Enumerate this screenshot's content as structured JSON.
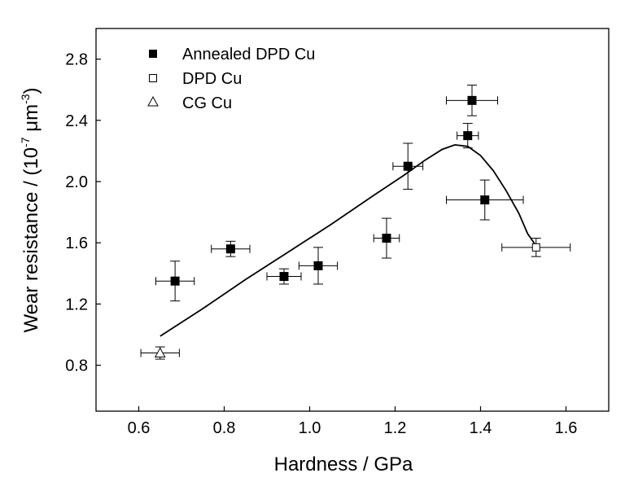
{
  "chart_data": {
    "type": "scatter",
    "xlabel": "Hardness / GPa",
    "ylabel": {
      "main": "Wear resistance / (10",
      "exp1": "-7",
      "mid": " μm",
      "exp2": "-3",
      "end": ")"
    },
    "xlim": [
      0.5,
      1.7
    ],
    "ylim": [
      0.5,
      3.0
    ],
    "xticks": [
      "0.6",
      "0.8",
      "1.0",
      "1.2",
      "1.4",
      "1.6"
    ],
    "yticks": [
      "0.8",
      "1.2",
      "1.6",
      "2.0",
      "2.4",
      "2.8"
    ],
    "grid": false,
    "legend_position": "top-left",
    "series": [
      {
        "name": "Annealed DPD Cu",
        "marker": "filled-square",
        "points": [
          {
            "x": 0.685,
            "y": 1.35,
            "xerr": 0.045,
            "yerr": 0.13
          },
          {
            "x": 0.815,
            "y": 1.56,
            "xerr": 0.045,
            "yerr": 0.05
          },
          {
            "x": 0.94,
            "y": 1.38,
            "xerr": 0.04,
            "yerr": 0.05
          },
          {
            "x": 1.02,
            "y": 1.45,
            "xerr": 0.045,
            "yerr": 0.12
          },
          {
            "x": 1.18,
            "y": 1.63,
            "xerr": 0.03,
            "yerr": 0.13
          },
          {
            "x": 1.23,
            "y": 2.1,
            "xerr": 0.035,
            "yerr": 0.15
          },
          {
            "x": 1.37,
            "y": 2.3,
            "xerr": 0.025,
            "yerr": 0.08
          },
          {
            "x": 1.38,
            "y": 2.53,
            "xerr": 0.06,
            "yerr": 0.1
          },
          {
            "x": 1.41,
            "y": 1.88,
            "xerr": 0.09,
            "yerr": 0.13
          }
        ]
      },
      {
        "name": "DPD Cu",
        "marker": "open-square",
        "points": [
          {
            "x": 1.53,
            "y": 1.57,
            "xerr": 0.08,
            "yerr": 0.06
          }
        ]
      },
      {
        "name": "CG Cu",
        "marker": "open-triangle",
        "points": [
          {
            "x": 0.65,
            "y": 0.88,
            "xerr": 0.045,
            "yerr": 0.04
          }
        ]
      }
    ],
    "fit_curve": {
      "points": [
        [
          0.65,
          0.99
        ],
        [
          0.75,
          1.17
        ],
        [
          0.85,
          1.36
        ],
        [
          0.95,
          1.54
        ],
        [
          1.05,
          1.72
        ],
        [
          1.15,
          1.91
        ],
        [
          1.22,
          2.04
        ],
        [
          1.27,
          2.14
        ],
        [
          1.31,
          2.21
        ],
        [
          1.34,
          2.24
        ],
        [
          1.37,
          2.23
        ],
        [
          1.4,
          2.17
        ],
        [
          1.43,
          2.07
        ],
        [
          1.46,
          1.94
        ],
        [
          1.49,
          1.79
        ],
        [
          1.51,
          1.66
        ],
        [
          1.53,
          1.58
        ]
      ]
    },
    "colors": {
      "axis": "#000000",
      "marker": "#000000",
      "curve": "#000000",
      "background": "#ffffff"
    }
  }
}
